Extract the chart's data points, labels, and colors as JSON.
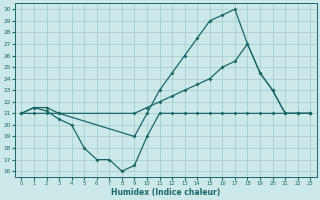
{
  "xlabel": "Humidex (Indice chaleur)",
  "background_color": "#cce8e8",
  "grid_color": "#aacece",
  "line_color": "#1a6868",
  "xlim": [
    -0.5,
    23.5
  ],
  "ylim": [
    15.5,
    30.5
  ],
  "yticks": [
    16,
    17,
    18,
    19,
    20,
    21,
    22,
    23,
    24,
    25,
    26,
    27,
    28,
    29,
    30
  ],
  "xticks": [
    0,
    1,
    2,
    3,
    4,
    5,
    6,
    7,
    8,
    9,
    10,
    11,
    12,
    13,
    14,
    15,
    16,
    17,
    18,
    19,
    20,
    21,
    22,
    23
  ],
  "line1_x": [
    0,
    1,
    2,
    3,
    9,
    10,
    11,
    12,
    13,
    14,
    15,
    16,
    17,
    18,
    19,
    20,
    21,
    22,
    23
  ],
  "line1_y": [
    21,
    21.5,
    21.5,
    21,
    19,
    21,
    23,
    24.5,
    26,
    27.5,
    29,
    29.5,
    30,
    27,
    24.5,
    23,
    21,
    21,
    21
  ],
  "line2_x": [
    0,
    1,
    2,
    3,
    9,
    10,
    11,
    12,
    13,
    14,
    15,
    16,
    17,
    18,
    19,
    20,
    21,
    22,
    23
  ],
  "line2_y": [
    21,
    21,
    21,
    21,
    21,
    21.5,
    22,
    22.5,
    23,
    23.5,
    24,
    25,
    25.5,
    27,
    24.5,
    23,
    21,
    21,
    21
  ],
  "line3_x": [
    0,
    1,
    2,
    3,
    4,
    5,
    6,
    7,
    8,
    9,
    10,
    11,
    12,
    13,
    14,
    15,
    16,
    17,
    18,
    19,
    20,
    21,
    22,
    23
  ],
  "line3_y": [
    21,
    21.5,
    21.2,
    20.5,
    20,
    18,
    17,
    17,
    16,
    16.5,
    19,
    21,
    21,
    21,
    21,
    21,
    21,
    21,
    21,
    21,
    21,
    21,
    21,
    21
  ]
}
